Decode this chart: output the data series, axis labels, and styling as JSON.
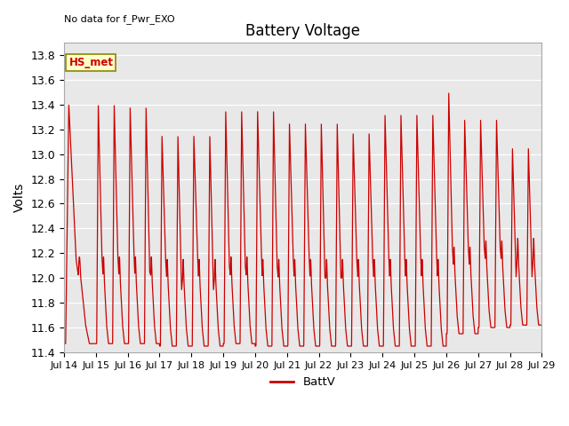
{
  "title": "Battery Voltage",
  "ylabel": "Volts",
  "note": "No data for f_Pwr_EXO",
  "legend_label": "BattV",
  "line_color": "#cc0000",
  "bg_color": "#e8e8e8",
  "ylim": [
    11.4,
    13.9
  ],
  "yticks": [
    11.4,
    11.6,
    11.8,
    12.0,
    12.2,
    12.4,
    12.6,
    12.8,
    13.0,
    13.2,
    13.4,
    13.6,
    13.8
  ],
  "xtick_labels": [
    "Jul 14",
    "Jul 15",
    "Jul 16",
    "Jul 17",
    "Jul 18",
    "Jul 19",
    "Jul 20",
    "Jul 21",
    "Jul 22",
    "Jul 23",
    "Jul 24",
    "Jul 25",
    "Jul 26",
    "Jul 27",
    "Jul 28",
    "Jul 29"
  ],
  "hs_met_label": "HS_met",
  "hs_met_bg": "#ffffcc",
  "hs_met_border": "#888800",
  "hs_met_text_color": "#cc0000",
  "figsize": [
    6.4,
    4.8
  ],
  "dpi": 100,
  "grid_color": "#ffffff",
  "spine_color": "#aaaaaa"
}
